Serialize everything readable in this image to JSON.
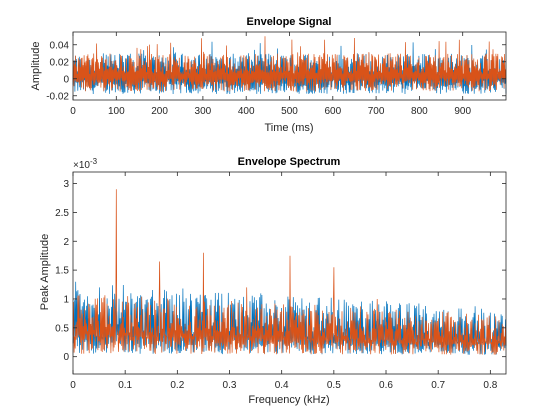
{
  "colors": {
    "series1": "#0072bd",
    "series2": "#d95319",
    "axis": "#262626"
  },
  "chart_data": [
    {
      "type": "line",
      "title": "Envelope Signal",
      "xlabel": "Time (ms)",
      "ylabel": "Amplitude",
      "xlim": [
        0,
        1000
      ],
      "ylim": [
        -0.025,
        0.055
      ],
      "xticks": [
        0,
        100,
        200,
        300,
        400,
        500,
        600,
        700,
        800,
        900
      ],
      "xtick_labels": [
        "0",
        "100",
        "200",
        "300",
        "400",
        "500",
        "600",
        "700",
        "800",
        "900"
      ],
      "yticks": [
        -0.02,
        0,
        0.02,
        0.04
      ],
      "ytick_labels": [
        "-0.02",
        "0",
        "0.02",
        "0.04"
      ],
      "grid": false,
      "series": [
        {
          "color": "#0072bd",
          "baseline": 0.005,
          "noise_range": [
            -0.018,
            0.03
          ],
          "peak_max": 0.045
        },
        {
          "color": "#d95319",
          "baseline": 0.005,
          "noise_range": [
            -0.015,
            0.03
          ],
          "peak_max": 0.05,
          "peaks": [
            {
              "x": 443,
              "y": 0.05
            },
            {
              "x": 505,
              "y": 0.046
            }
          ]
        }
      ]
    },
    {
      "type": "line",
      "title": "Envelope Spectrum",
      "xlabel": "Frequency (kHz)",
      "ylabel": "Peak Amplitude",
      "exponent_label": "×10",
      "exponent_power": "-3",
      "xlim": [
        0,
        0.83
      ],
      "ylim": [
        -0.3,
        3.2
      ],
      "xticks": [
        0,
        0.1,
        0.2,
        0.3,
        0.4,
        0.5,
        0.6,
        0.7,
        0.8
      ],
      "xtick_labels": [
        "0",
        "0.1",
        "0.2",
        "0.3",
        "0.4",
        "0.5",
        "0.6",
        "0.7",
        "0.8"
      ],
      "yticks": [
        0,
        0.5,
        1,
        1.5,
        2,
        2.5,
        3
      ],
      "ytick_labels": [
        "0",
        "0.5",
        "1",
        "1.5",
        "2",
        "2.5",
        "3"
      ],
      "grid": false,
      "series": [
        {
          "color": "#0072bd",
          "baseline": 0.5,
          "noise_range": [
            0.05,
            1.3
          ]
        },
        {
          "color": "#d95319",
          "baseline": 0.5,
          "noise_range": [
            0.05,
            1.1
          ],
          "peaks": [
            {
              "x": 0.083,
              "y": 2.9
            },
            {
              "x": 0.166,
              "y": 1.65
            },
            {
              "x": 0.25,
              "y": 1.8
            },
            {
              "x": 0.333,
              "y": 1.2
            },
            {
              "x": 0.416,
              "y": 1.75
            },
            {
              "x": 0.5,
              "y": 1.55
            },
            {
              "x": 0.583,
              "y": 1.0
            }
          ]
        }
      ]
    }
  ]
}
